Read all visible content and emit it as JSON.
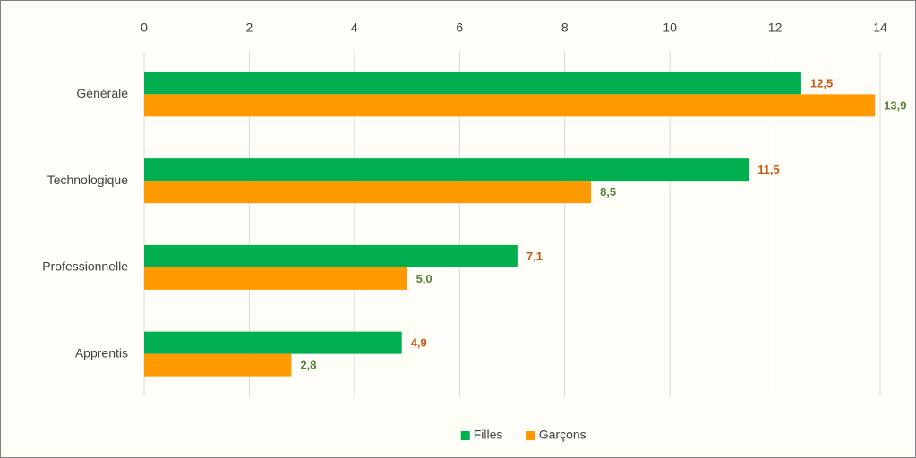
{
  "chart_data": {
    "type": "bar",
    "orientation": "horizontal",
    "categories": [
      "Générale",
      "Technologique",
      "Professionnelle",
      "Apprentis"
    ],
    "series": [
      {
        "name": "Filles",
        "color": "#00b050",
        "label_color": "#c55a11",
        "values": [
          12.5,
          11.5,
          7.1,
          4.9
        ],
        "value_labels": [
          "12,5",
          "11,5",
          "7,1",
          "4,9"
        ]
      },
      {
        "name": "Garçons",
        "color": "#ff9900",
        "label_color": "#538135",
        "values": [
          13.9,
          8.5,
          5.0,
          2.8
        ],
        "value_labels": [
          "13,9",
          "8,5",
          "5,0",
          "2,8"
        ]
      }
    ],
    "xlim": [
      0,
      14
    ],
    "xticks": [
      0,
      2,
      4,
      6,
      8,
      10,
      12,
      14
    ],
    "grid": true,
    "legend": "bottom"
  }
}
